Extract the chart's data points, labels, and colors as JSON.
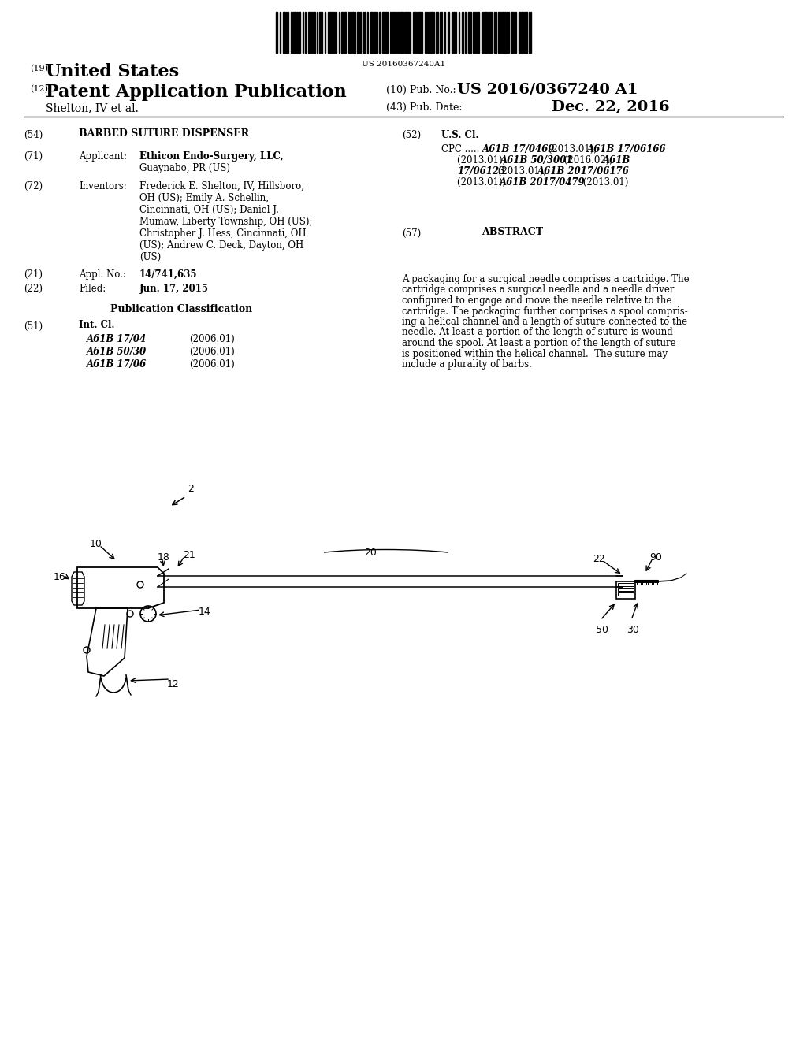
{
  "bg_color": "#ffffff",
  "barcode_text": "US 20160367240A1",
  "header": {
    "country_prefix": "(19)",
    "country": "United States",
    "type_prefix": "(12)",
    "type": "Patent Application Publication",
    "pub_no_prefix": "(10) Pub. No.:",
    "pub_no": "US 2016/0367240 A1",
    "inventor_line": "Shelton, IV et al.",
    "date_prefix": "(43) Pub. Date:",
    "date": "Dec. 22, 2016"
  },
  "left_col": {
    "title_num": "(54)",
    "title": "BARBED SUTURE DISPENSER",
    "applicant_num": "(71)",
    "applicant_label": "Applicant:",
    "applicant_name": "Ethicon Endo-Surgery, LLC,",
    "applicant_loc": "Guaynabo, PR (US)",
    "inventors_num": "(72)",
    "inventors_label": "Inventors:",
    "inventors": [
      "Frederick E. Shelton, IV, Hillsboro,",
      "OH (US); Emily A. Schellin,",
      "Cincinnati, OH (US); Daniel J.",
      "Mumaw, Liberty Township, OH (US);",
      "Christopher J. Hess, Cincinnati, OH",
      "(US); Andrew C. Deck, Dayton, OH",
      "(US)"
    ],
    "appl_num_label": "(21)",
    "appl_no_text": "Appl. No.:",
    "appl_no": "14/741,635",
    "filed_num": "(22)",
    "filed_label": "Filed:",
    "filed_date": "Jun. 17, 2015",
    "pub_class_header": "Publication Classification",
    "int_cl_num": "(51)",
    "int_cl_label": "Int. Cl.",
    "int_cl_entries": [
      [
        "A61B 17/04",
        "(2006.01)"
      ],
      [
        "A61B 50/30",
        "(2006.01)"
      ],
      [
        "A61B 17/06",
        "(2006.01)"
      ]
    ]
  },
  "right_col": {
    "us_cl_num": "(52)",
    "us_cl_label": "U.S. Cl.",
    "abstract_num": "(57)",
    "abstract_label": "ABSTRACT",
    "abstract_lines": [
      "A packaging for a surgical needle comprises a cartridge. The",
      "cartridge comprises a surgical needle and a needle driver",
      "configured to engage and move the needle relative to the",
      "cartridge. The packaging further comprises a spool compris-",
      "ing a helical channel and a length of suture connected to the",
      "needle. At least a portion of the length of suture is wound",
      "around the spool. At least a portion of the length of suture",
      "is positioned within the helical channel.  The suture may",
      "include a plurality of barbs."
    ]
  },
  "diagram": {
    "label_2": "2",
    "label_10": "10",
    "label_12": "12",
    "label_14": "14",
    "label_16": "16",
    "label_18": "18",
    "label_20": "20",
    "label_21": "21",
    "label_22": "22",
    "label_30": "30",
    "label_50": "50",
    "label_90": "90"
  }
}
